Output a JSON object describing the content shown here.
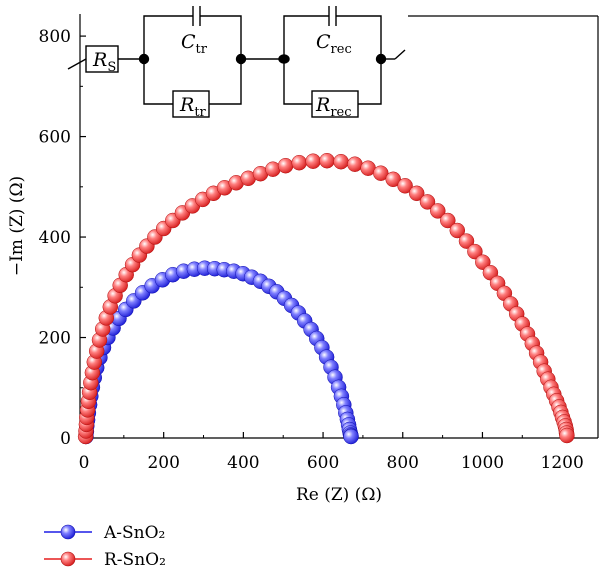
{
  "chart_data": {
    "type": "scatter",
    "title": "",
    "xlabel": "Re (Z) (Ω)",
    "ylabel": "−Im (Z) (Ω)",
    "xlim": [
      -10,
      1290
    ],
    "ylim": [
      0,
      840
    ],
    "x_ticks": [
      "0",
      "200",
      "400",
      "600",
      "800",
      "1000",
      "1200"
    ],
    "y_ticks": [
      "0",
      "200",
      "400",
      "600",
      "800"
    ],
    "legend_position": "bottom-left",
    "series": [
      {
        "name": "A-SnO₂",
        "color": "#1f1fe6",
        "x": [
          5,
          6,
          7,
          9,
          11,
          14,
          17,
          21,
          26,
          32,
          40,
          49,
          60,
          73,
          88,
          105,
          125,
          147,
          171,
          197,
          223,
          250,
          277,
          303,
          328,
          352,
          376,
          399,
          421,
          443,
          464,
          484,
          503,
          521,
          538,
          554,
          570,
          584,
          597,
          609,
          620,
          630,
          639,
          646,
          652,
          657,
          661,
          664,
          666,
          668,
          669,
          670,
          670
        ],
        "y": [
          3,
          13,
          24,
          36,
          50,
          66,
          83,
          101,
          120,
          140,
          160,
          180,
          200,
          219,
          238,
          256,
          273,
          289,
          303,
          315,
          325,
          332,
          336,
          338,
          337,
          335,
          332,
          327,
          320,
          312,
          302,
          291,
          278,
          264,
          249,
          233,
          216,
          198,
          180,
          161,
          141,
          121,
          101,
          83,
          66,
          50,
          37,
          26,
          17,
          10,
          6,
          4,
          3
        ]
      },
      {
        "name": "R-SnO₂",
        "color": "#e61f1f",
        "x": [
          4,
          5,
          6,
          7,
          9,
          11,
          14,
          17,
          21,
          26,
          32,
          39,
          47,
          56,
          66,
          78,
          91,
          106,
          122,
          139,
          158,
          178,
          200,
          223,
          247,
          272,
          298,
          325,
          353,
          382,
          412,
          443,
          474,
          506,
          540,
          575,
          610,
          645,
          680,
          713,
          745,
          776,
          806,
          835,
          862,
          888,
          913,
          937,
          960,
          981,
          1001,
          1020,
          1038,
          1055,
          1071,
          1086,
          1100,
          1113,
          1125,
          1136,
          1146,
          1155,
          1164,
          1172,
          1179,
          1186,
          1192,
          1197,
          1201,
          1205,
          1208,
          1210,
          1211,
          1212
        ],
        "y": [
          3,
          14,
          27,
          41,
          56,
          73,
          91,
          110,
          130,
          151,
          173,
          195,
          217,
          239,
          261,
          283,
          304,
          325,
          345,
          364,
          382,
          400,
          417,
          433,
          448,
          462,
          475,
          487,
          498,
          508,
          517,
          526,
          535,
          542,
          548,
          551,
          552,
          550,
          545,
          537,
          527,
          515,
          502,
          487,
          470,
          452,
          433,
          413,
          392,
          371,
          350,
          329,
          308,
          288,
          267,
          247,
          227,
          207,
          188,
          169,
          151,
          133,
          117,
          101,
          87,
          74,
          62,
          51,
          41,
          32,
          24,
          17,
          10,
          5
        ]
      }
    ],
    "circuit": {
      "rs": "R",
      "rs_sub": "S",
      "ctr": "C",
      "ctr_sub": "tr",
      "rtr": "R",
      "rtr_sub": "tr",
      "crec": "C",
      "crec_sub": "rec",
      "rrec": "R",
      "rrec_sub": "rec"
    }
  }
}
